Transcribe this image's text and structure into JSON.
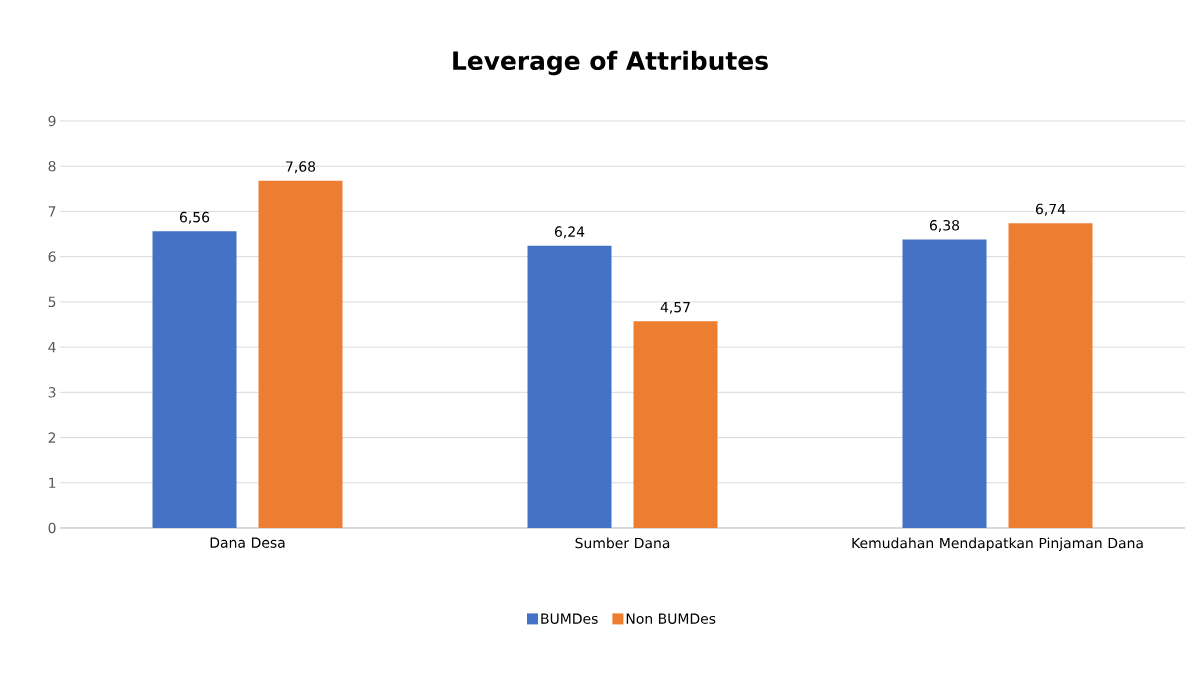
{
  "chart_data": {
    "type": "bar",
    "title": "Leverage of Attributes",
    "categories": [
      "Dana Desa",
      "Sumber Dana",
      "Kemudahan Mendapatkan Pinjaman Dana"
    ],
    "series": [
      {
        "name": "BUMDes",
        "color": "#4472c4",
        "values": [
          6.56,
          6.24,
          6.38
        ],
        "value_labels": [
          "6,56",
          "6,24",
          "6,38"
        ]
      },
      {
        "name": "Non BUMDes",
        "color": "#ed7d31",
        "values": [
          7.68,
          4.57,
          6.74
        ],
        "value_labels": [
          "7,68",
          "4,57",
          "6,74"
        ]
      }
    ],
    "ylim": [
      0,
      9
    ],
    "yticks": [
      0,
      1,
      2,
      3,
      4,
      5,
      6,
      7,
      8,
      9
    ],
    "grid": "y",
    "legend": "bottom"
  }
}
